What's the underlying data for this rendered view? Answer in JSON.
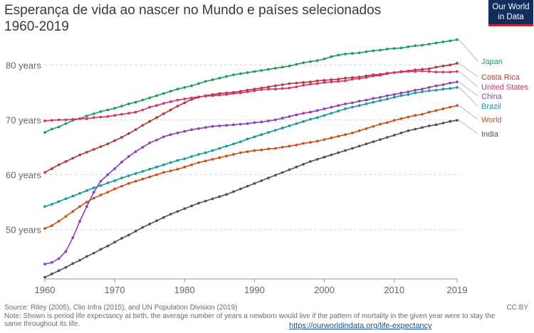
{
  "header": {
    "title_line1": "Esperança de vida ao nascer no Mundo e países selecionados",
    "title_line2": "1960-2019"
  },
  "logo": {
    "line1": "Our World",
    "line2": "in Data",
    "colors": {
      "background": "#0f2e5b",
      "underline": "#c8262c"
    }
  },
  "footer": {
    "source": "Source: Riley (2005), Clio Infra (2015), and UN Population Division (2019)",
    "note": "Note: Shown is period life expectancy at birth, the average number of years a newborn would live if the pattern of mortality in the given year were to stay the same throughout its life.",
    "license": "CC BY",
    "url": "https://ourworldindata.org/life-expectancy"
  },
  "chart_data": {
    "type": "line",
    "title": "Esperança de vida ao nascer no Mundo e países selecionados",
    "subtitle": "1960-2019",
    "xlabel": "",
    "ylabel": "",
    "xlim": [
      1960,
      2019
    ],
    "ylim": [
      41,
      86
    ],
    "grid": "horizontal dashed",
    "x_ticks": [
      "1960",
      "1970",
      "1980",
      "1990",
      "2000",
      "2010",
      "2019"
    ],
    "x_tick_values": [
      1960,
      1970,
      1980,
      1990,
      2000,
      2010,
      2019
    ],
    "y_ticks": [
      "50 years",
      "60 years",
      "70 years",
      "80 years"
    ],
    "y_tick_values": [
      50,
      60,
      70,
      80
    ],
    "legend": "inline labels at right end of lines",
    "x": [
      1960,
      1961,
      1962,
      1963,
      1964,
      1965,
      1966,
      1967,
      1968,
      1969,
      1970,
      1971,
      1972,
      1973,
      1974,
      1975,
      1976,
      1977,
      1978,
      1979,
      1980,
      1981,
      1982,
      1983,
      1984,
      1985,
      1986,
      1987,
      1988,
      1989,
      1990,
      1991,
      1992,
      1993,
      1994,
      1995,
      1996,
      1997,
      1998,
      1999,
      2000,
      2001,
      2002,
      2003,
      2004,
      2005,
      2006,
      2007,
      2008,
      2009,
      2010,
      2011,
      2012,
      2013,
      2014,
      2015,
      2016,
      2017,
      2018,
      2019
    ],
    "series": [
      {
        "name": "Japan",
        "color": "#1f9e5a",
        "values": [
          67.7,
          68.3,
          68.7,
          69.3,
          69.9,
          70.2,
          70.7,
          71.1,
          71.5,
          71.8,
          72.1,
          72.5,
          72.9,
          73.2,
          73.6,
          74.0,
          74.4,
          74.8,
          75.2,
          75.6,
          75.9,
          76.2,
          76.6,
          77.0,
          77.3,
          77.6,
          77.9,
          78.2,
          78.4,
          78.6,
          78.8,
          79.0,
          79.2,
          79.4,
          79.6,
          79.8,
          80.1,
          80.4,
          80.6,
          80.8,
          81.1,
          81.5,
          81.8,
          82.0,
          82.1,
          82.2,
          82.4,
          82.6,
          82.7,
          82.9,
          83.0,
          83.1,
          83.3,
          83.5,
          83.6,
          83.8,
          84.0,
          84.2,
          84.4,
          84.6
        ]
      },
      {
        "name": "Costa Rica",
        "color": "#b13a3a",
        "values": [
          60.4,
          61.1,
          61.8,
          62.4,
          63.0,
          63.6,
          64.1,
          64.6,
          65.1,
          65.6,
          66.2,
          66.8,
          67.5,
          68.2,
          69.0,
          69.7,
          70.4,
          71.1,
          71.8,
          72.5,
          73.1,
          73.7,
          74.1,
          74.4,
          74.6,
          74.8,
          74.9,
          75.0,
          75.2,
          75.4,
          75.6,
          75.8,
          76.0,
          76.2,
          76.4,
          76.6,
          76.7,
          76.8,
          76.9,
          77.1,
          77.2,
          77.3,
          77.4,
          77.6,
          77.7,
          77.8,
          78.0,
          78.2,
          78.3,
          78.5,
          78.6,
          78.8,
          78.9,
          79.1,
          79.2,
          79.3,
          79.6,
          79.8,
          80.0,
          80.3
        ]
      },
      {
        "name": "United States",
        "color": "#d6336c",
        "values": [
          69.8,
          69.9,
          70.0,
          70.0,
          70.1,
          70.2,
          70.2,
          70.4,
          70.5,
          70.6,
          70.8,
          71.0,
          71.2,
          71.4,
          71.8,
          72.3,
          72.6,
          73.0,
          73.3,
          73.6,
          73.8,
          74.0,
          74.2,
          74.3,
          74.4,
          74.5,
          74.6,
          74.8,
          74.9,
          75.1,
          75.3,
          75.5,
          75.6,
          75.6,
          75.7,
          75.8,
          76.0,
          76.3,
          76.5,
          76.6,
          76.8,
          76.9,
          77.0,
          77.1,
          77.4,
          77.5,
          77.7,
          78.0,
          78.1,
          78.4,
          78.6,
          78.7,
          78.8,
          78.8,
          78.9,
          78.8,
          78.7,
          78.7,
          78.7,
          78.8
        ]
      },
      {
        "name": "China",
        "color": "#8b3fbf",
        "values": [
          43.7,
          44.0,
          44.7,
          46.0,
          48.5,
          51.5,
          54.2,
          56.8,
          58.8,
          60.0,
          61.1,
          62.3,
          63.3,
          64.2,
          65.0,
          65.8,
          66.3,
          66.9,
          67.3,
          67.6,
          67.9,
          68.2,
          68.4,
          68.6,
          68.8,
          68.9,
          69.0,
          69.1,
          69.2,
          69.3,
          69.5,
          69.6,
          69.8,
          70.0,
          70.3,
          70.6,
          70.9,
          71.2,
          71.4,
          71.7,
          72.0,
          72.3,
          72.6,
          72.9,
          73.1,
          73.4,
          73.6,
          73.9,
          74.1,
          74.4,
          74.6,
          74.9,
          75.1,
          75.4,
          75.6,
          75.9,
          76.2,
          76.4,
          76.7,
          76.9
        ]
      },
      {
        "name": "Brazil",
        "color": "#179a9a",
        "values": [
          54.2,
          54.6,
          55.1,
          55.6,
          56.1,
          56.6,
          57.1,
          57.6,
          58.0,
          58.5,
          58.9,
          59.4,
          59.8,
          60.2,
          60.6,
          61.0,
          61.4,
          61.8,
          62.2,
          62.6,
          62.9,
          63.3,
          63.7,
          64.0,
          64.4,
          64.8,
          65.2,
          65.6,
          66.0,
          66.5,
          66.9,
          67.3,
          67.7,
          68.1,
          68.5,
          68.9,
          69.3,
          69.7,
          70.1,
          70.4,
          70.8,
          71.2,
          71.6,
          72.0,
          72.3,
          72.6,
          72.9,
          73.2,
          73.5,
          73.8,
          74.1,
          74.4,
          74.6,
          74.9,
          75.1,
          75.3,
          75.4,
          75.6,
          75.7,
          75.9
        ]
      },
      {
        "name": "World",
        "color": "#c9521a",
        "values": [
          50.2,
          50.7,
          51.5,
          52.4,
          53.3,
          54.2,
          55.0,
          55.7,
          56.3,
          56.8,
          57.4,
          57.9,
          58.4,
          58.8,
          59.2,
          59.6,
          60.0,
          60.4,
          60.7,
          61.0,
          61.4,
          61.8,
          62.2,
          62.5,
          62.8,
          63.1,
          63.4,
          63.7,
          64.0,
          64.2,
          64.4,
          64.5,
          64.7,
          64.8,
          65.0,
          65.2,
          65.4,
          65.7,
          65.9,
          66.1,
          66.4,
          66.7,
          67.0,
          67.3,
          67.6,
          68.0,
          68.4,
          68.8,
          69.2,
          69.5,
          69.9,
          70.2,
          70.5,
          70.8,
          71.0,
          71.4,
          71.7,
          72.0,
          72.3,
          72.6
        ]
      },
      {
        "name": "India",
        "color": "#4a5560",
        "values": [
          41.3,
          41.9,
          42.5,
          43.1,
          43.8,
          44.4,
          45.1,
          45.7,
          46.4,
          47.0,
          47.7,
          48.4,
          49.0,
          49.7,
          50.4,
          51.0,
          51.6,
          52.2,
          52.8,
          53.3,
          53.8,
          54.3,
          54.8,
          55.2,
          55.6,
          56.0,
          56.4,
          56.9,
          57.4,
          57.9,
          58.4,
          58.9,
          59.4,
          59.9,
          60.4,
          60.9,
          61.4,
          61.9,
          62.4,
          62.8,
          63.2,
          63.6,
          64.0,
          64.4,
          64.8,
          65.2,
          65.6,
          66.0,
          66.4,
          66.8,
          67.2,
          67.6,
          68.0,
          68.3,
          68.6,
          68.9,
          69.1,
          69.4,
          69.7,
          69.9
        ]
      }
    ]
  }
}
